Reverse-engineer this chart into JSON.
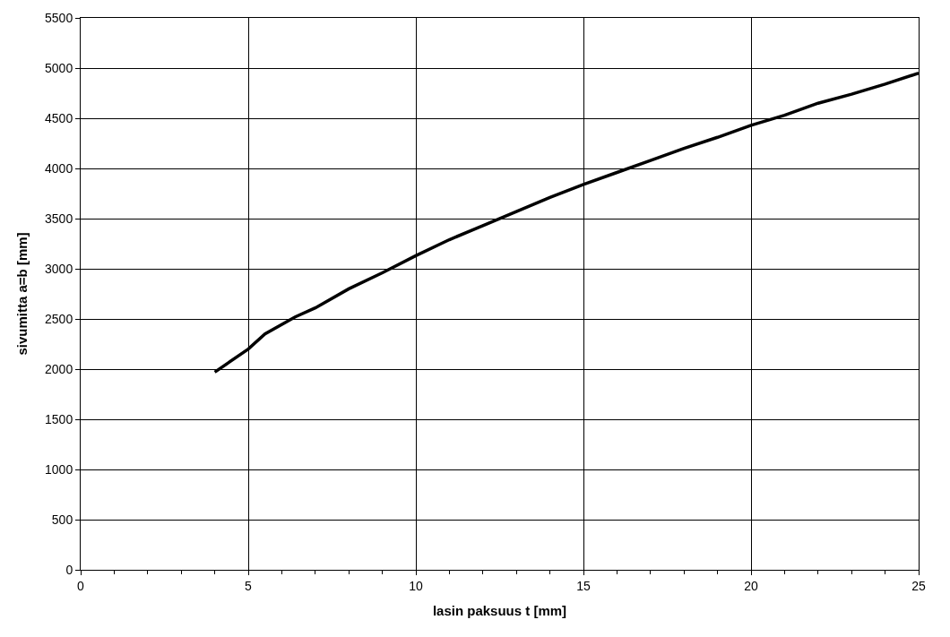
{
  "chart_data": {
    "type": "line",
    "xlabel": "lasin paksuus t [mm]",
    "ylabel": "sivumitta a=b [mm]",
    "series": [
      {
        "color": "#000000",
        "x": [
          4,
          5,
          5.5,
          6.4,
          7,
          8,
          9,
          10,
          11,
          12,
          13,
          14,
          15,
          16,
          17,
          18,
          19,
          20,
          21,
          22,
          23,
          24,
          25
        ],
        "values": [
          1970,
          2200,
          2350,
          2520,
          2610,
          2800,
          2960,
          3130,
          3290,
          3430,
          3570,
          3710,
          3840,
          3960,
          4080,
          4200,
          4310,
          4430,
          4530,
          4650,
          4740,
          4840,
          4950
        ]
      }
    ],
    "xlim": [
      0,
      25
    ],
    "xticks": [
      0,
      5,
      10,
      15,
      20,
      25
    ],
    "ylim": [
      0,
      5500
    ],
    "yticks": [
      0,
      500,
      1000,
      1500,
      2000,
      2500,
      3000,
      3500,
      4000,
      4500,
      5000,
      5500
    ],
    "grid": true,
    "marker": "none",
    "line_style": "solid"
  }
}
